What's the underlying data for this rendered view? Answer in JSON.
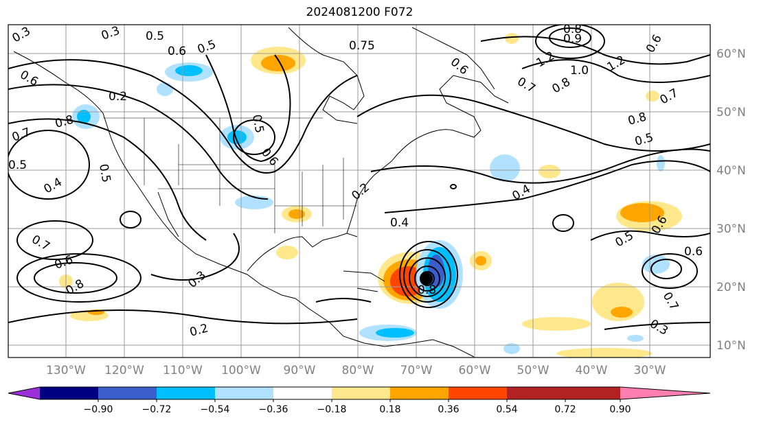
{
  "title": "2024081200 F072",
  "lon_labels": [
    "130°W",
    "120°W",
    "110°W",
    "100°W",
    "90°W",
    "80°W",
    "70°W",
    "60°W",
    "50°W",
    "40°W",
    "30°W"
  ],
  "lat_labels": [
    "60°N",
    "50°N",
    "40°N",
    "30°N",
    "20°N",
    "10°N"
  ],
  "colorbar": {
    "ticks": [
      "−0.90",
      "−0.72",
      "−0.54",
      "−0.36",
      "−0.18",
      "0.18",
      "0.36",
      "0.54",
      "0.72",
      "0.90"
    ],
    "colors": [
      "#9b30d9",
      "#000080",
      "#3a5fcd",
      "#00bfff",
      "#b0e2ff",
      "#ffffff",
      "#ffe88c",
      "#ffa500",
      "#ff4500",
      "#b22222",
      "#ff80b0"
    ]
  },
  "contour_labels": [
    "0.3",
    "0.3",
    "0.5",
    "0.6",
    "0.5",
    "0.75",
    "0.6",
    "0.9",
    "0.8",
    "1.2",
    "1.0",
    "1.2",
    "0.7",
    "0.8",
    "0.6",
    "0.2",
    "0.8",
    "0.7",
    "0.8",
    "0.6",
    "0.5",
    "0.7",
    "0.5",
    "0.4",
    "0.5",
    "0.4",
    "0.2",
    "0.4",
    "0.5",
    "0.6",
    "0.7",
    "0.6",
    "0.8",
    "0.8",
    "0.3",
    "0.2",
    "0.5",
    "0.6",
    "0.7",
    "0.3",
    "0.6"
  ]
}
